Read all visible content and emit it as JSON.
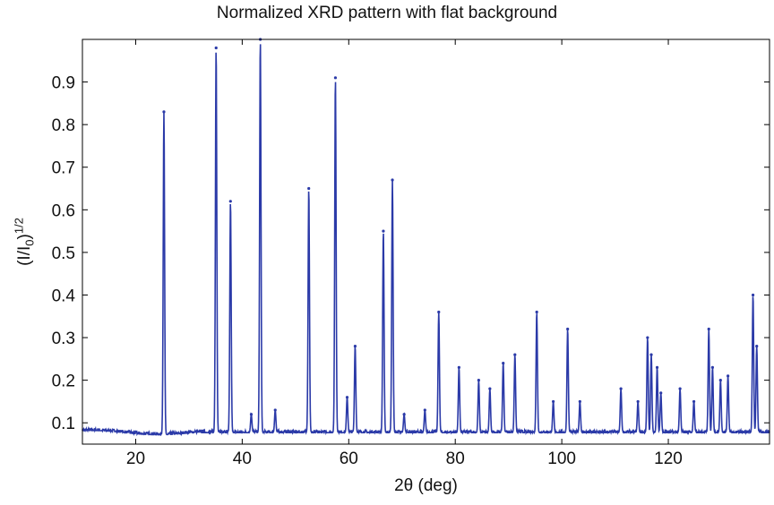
{
  "chart_data": {
    "type": "line",
    "title": "Normalized XRD pattern with flat background",
    "xlabel": "2θ (deg)",
    "ylabel": {
      "base": "(I/I",
      "sub": "0",
      "close": ")",
      "sup": "1/2"
    },
    "xlim": [
      10,
      139
    ],
    "ylim": [
      0.05,
      1.0
    ],
    "xticks": [
      20,
      40,
      60,
      80,
      100,
      120
    ],
    "yticks": [
      0.1,
      0.2,
      0.3,
      0.4,
      0.5,
      0.6,
      0.7,
      0.8,
      0.9
    ],
    "grid": false,
    "line_color": "#2b3aa8",
    "background_level": 0.077,
    "peaks": [
      {
        "x": 25.3,
        "y": 0.83
      },
      {
        "x": 35.1,
        "y": 0.98
      },
      {
        "x": 37.8,
        "y": 0.62
      },
      {
        "x": 41.7,
        "y": 0.12
      },
      {
        "x": 43.4,
        "y": 1.0
      },
      {
        "x": 46.2,
        "y": 0.13
      },
      {
        "x": 52.5,
        "y": 0.65
      },
      {
        "x": 57.5,
        "y": 0.91
      },
      {
        "x": 59.7,
        "y": 0.16
      },
      {
        "x": 61.2,
        "y": 0.28
      },
      {
        "x": 66.5,
        "y": 0.55
      },
      {
        "x": 68.2,
        "y": 0.67
      },
      {
        "x": 70.4,
        "y": 0.12
      },
      {
        "x": 74.3,
        "y": 0.13
      },
      {
        "x": 76.9,
        "y": 0.36
      },
      {
        "x": 80.7,
        "y": 0.23
      },
      {
        "x": 84.4,
        "y": 0.2
      },
      {
        "x": 86.5,
        "y": 0.18
      },
      {
        "x": 89.0,
        "y": 0.24
      },
      {
        "x": 91.2,
        "y": 0.26
      },
      {
        "x": 95.3,
        "y": 0.36
      },
      {
        "x": 98.4,
        "y": 0.15
      },
      {
        "x": 101.1,
        "y": 0.32
      },
      {
        "x": 103.4,
        "y": 0.15
      },
      {
        "x": 111.1,
        "y": 0.18
      },
      {
        "x": 114.3,
        "y": 0.15
      },
      {
        "x": 116.1,
        "y": 0.3
      },
      {
        "x": 116.8,
        "y": 0.26
      },
      {
        "x": 117.9,
        "y": 0.23
      },
      {
        "x": 118.6,
        "y": 0.17
      },
      {
        "x": 122.2,
        "y": 0.18
      },
      {
        "x": 124.8,
        "y": 0.15
      },
      {
        "x": 127.6,
        "y": 0.32
      },
      {
        "x": 128.3,
        "y": 0.23
      },
      {
        "x": 129.8,
        "y": 0.2
      },
      {
        "x": 131.2,
        "y": 0.21
      },
      {
        "x": 135.9,
        "y": 0.4
      },
      {
        "x": 136.6,
        "y": 0.28
      }
    ]
  }
}
